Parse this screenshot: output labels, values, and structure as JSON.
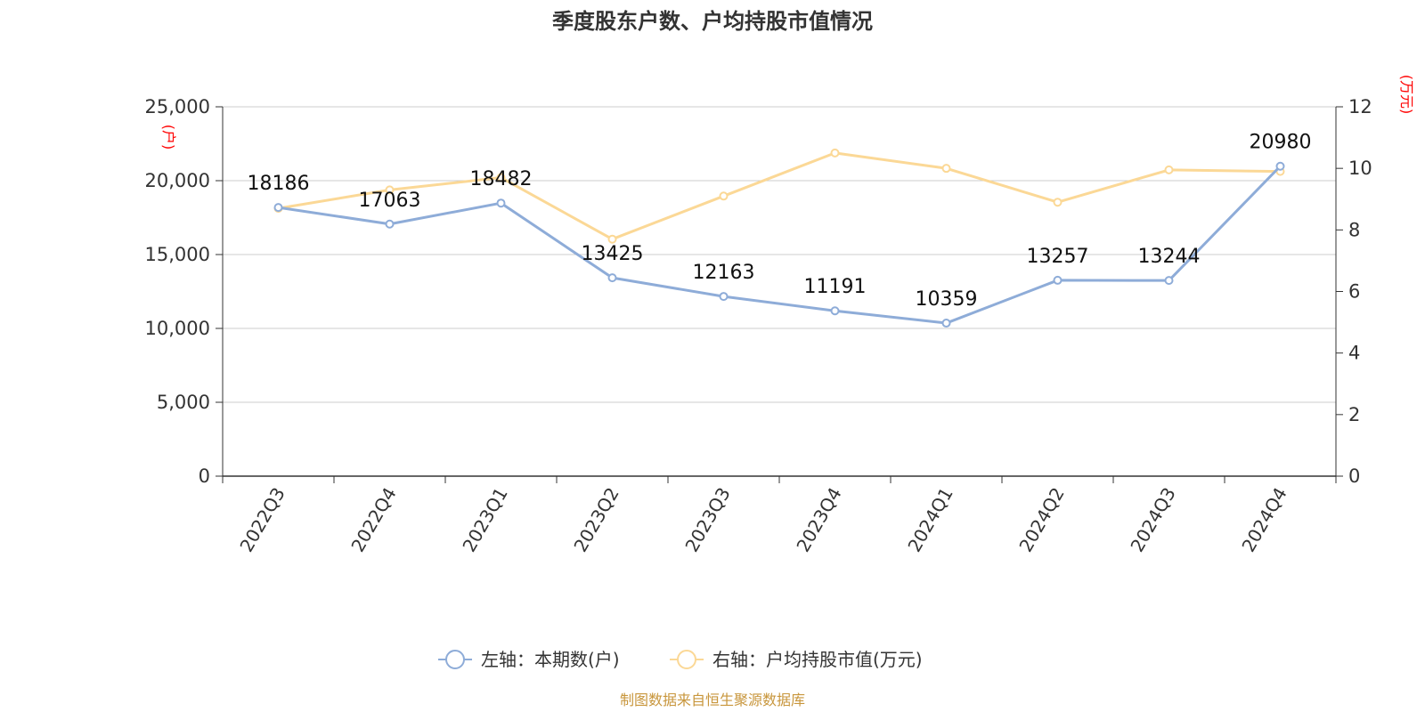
{
  "chart_data": {
    "type": "line",
    "title": "季度股东户数、户均持股市值情况",
    "categories": [
      "2022Q3",
      "2022Q4",
      "2023Q1",
      "2023Q2",
      "2023Q3",
      "2023Q4",
      "2024Q1",
      "2024Q2",
      "2024Q3",
      "2024Q4"
    ],
    "left_axis": {
      "unit": "(户)",
      "ylim": [
        0,
        25000
      ],
      "ticks": [
        0,
        5000,
        10000,
        15000,
        20000,
        25000
      ],
      "tick_labels": [
        "0",
        "5,000",
        "10,000",
        "15,000",
        "20,000",
        "25,000"
      ]
    },
    "right_axis": {
      "unit": "(万元)",
      "ylim": [
        0,
        12
      ],
      "ticks": [
        0,
        2,
        4,
        6,
        8,
        10,
        12
      ],
      "tick_labels": [
        "0",
        "2",
        "4",
        "6",
        "8",
        "10",
        "12"
      ]
    },
    "series": [
      {
        "name": "左轴：本期数(户)",
        "axis": "left",
        "color": "#8eacd8",
        "values": [
          18186,
          17063,
          18482,
          13425,
          12163,
          11191,
          10359,
          13257,
          13244,
          20980
        ],
        "labels": [
          "18186",
          "17063",
          "18482",
          "13425",
          "12163",
          "11191",
          "10359",
          "13257",
          "13244",
          "20980"
        ]
      },
      {
        "name": "右轴：户均持股市值(万元)",
        "axis": "right",
        "color": "#fbd896",
        "values": [
          8.7,
          9.3,
          9.7,
          7.7,
          9.1,
          10.5,
          10.0,
          8.9,
          9.95,
          9.9
        ]
      }
    ],
    "grid": true,
    "legend_position": "bottom"
  },
  "source": "制图数据来自恒生聚源数据库"
}
